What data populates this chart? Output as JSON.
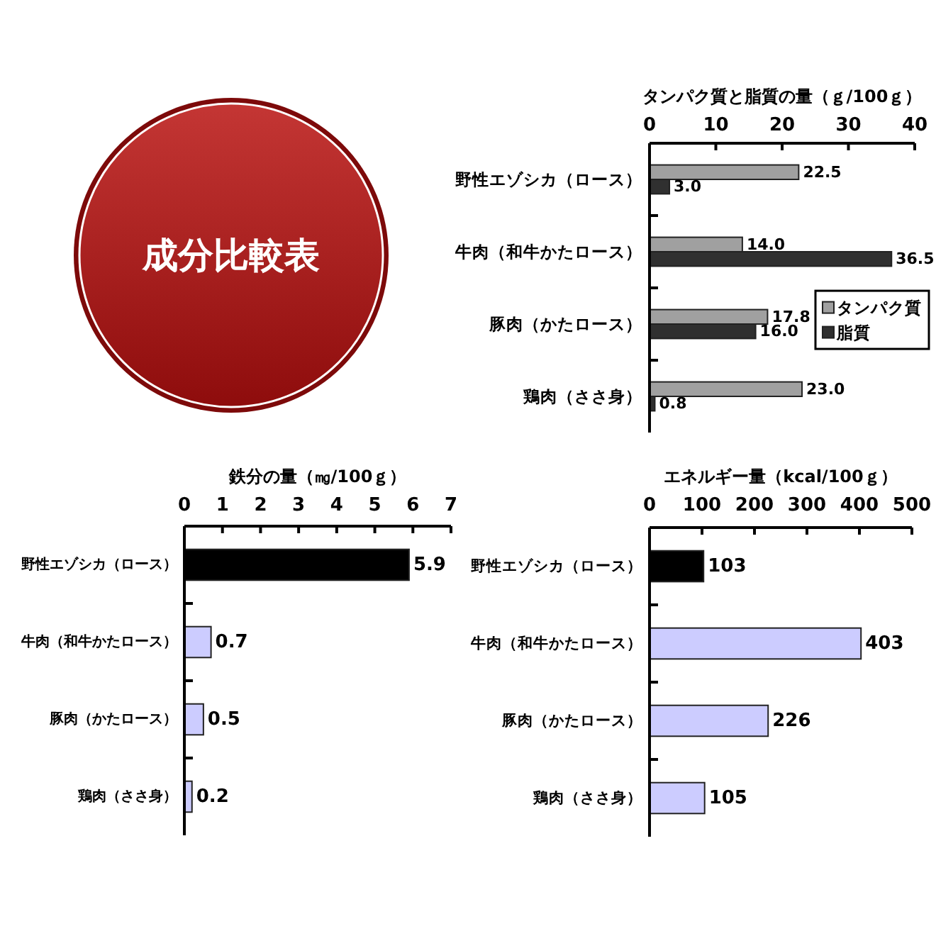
{
  "chart_data": [
    {
      "type": "other",
      "title": "成分比較表"
    },
    {
      "type": "bar",
      "orientation": "horizontal",
      "title": "タンパク質と脂質の量（ｇ/100ｇ）",
      "categories": [
        "野性エゾシカ（ロース）",
        "牛肉（和牛かたロース）",
        "豚肉（かたロース）",
        "鶏肉（ささ身）"
      ],
      "series": [
        {
          "name": "タンパク質",
          "color": "#a0a0a0",
          "values": [
            22.5,
            14.0,
            17.8,
            23.0
          ],
          "value_labels": [
            "22.5",
            "14.0",
            "17.8",
            "23.0"
          ]
        },
        {
          "name": "脂質",
          "color": "#303030",
          "values": [
            3.0,
            36.5,
            16.0,
            0.8
          ],
          "value_labels": [
            "3.0",
            "36.5",
            "16.0",
            "0.8"
          ]
        }
      ],
      "xlim": [
        0,
        40
      ],
      "xticks": [
        0,
        10,
        20,
        30,
        40
      ],
      "legend": "right"
    },
    {
      "type": "bar",
      "orientation": "horizontal",
      "title": "鉄分の量（㎎/100ｇ）",
      "categories": [
        "野性エゾシカ（ロース）",
        "牛肉（和牛かたロース）",
        "豚肉（かたロース）",
        "鶏肉（ささ身）"
      ],
      "values": [
        5.9,
        0.7,
        0.5,
        0.2
      ],
      "colors": [
        "#000000",
        "#ccccff",
        "#ccccff",
        "#ccccff"
      ],
      "xlim": [
        0,
        7
      ],
      "xticks": [
        0,
        1,
        2,
        3,
        4,
        5,
        6,
        7
      ],
      "data_labels": true
    },
    {
      "type": "bar",
      "orientation": "horizontal",
      "title": "エネルギー量（kcal/100ｇ）",
      "categories": [
        "野性エゾシカ（ロース）",
        "牛肉（和牛かたロース）",
        "豚肉（かたロース）",
        "鶏肉（ささ身）"
      ],
      "values": [
        103,
        403,
        226,
        105
      ],
      "colors": [
        "#000000",
        "#ccccff",
        "#ccccff",
        "#ccccff"
      ],
      "xlim": [
        0,
        500
      ],
      "xticks": [
        0,
        100,
        200,
        300,
        400,
        500
      ],
      "data_labels": true
    }
  ]
}
